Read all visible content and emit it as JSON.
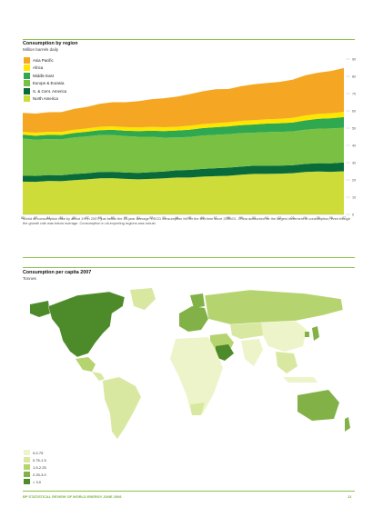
{
  "section1": {
    "title": "Consumption by region",
    "subtitle": "Million barrels daily",
    "caption": "World oil consumption rose by about 1% in 2007, just below the 10-year average. OECD consumption fell for the first time since 2000/01. China accounted for the largest increment to consumption, even though the growth rate was below average. Consumption in oil-exporting regions was robust."
  },
  "chart_data": {
    "type": "area",
    "title": "Consumption by region",
    "subtitle": "Million barrels daily",
    "x": [
      "82",
      "83",
      "84",
      "85",
      "86",
      "87",
      "88",
      "89",
      "90",
      "91",
      "92",
      "93",
      "94",
      "95",
      "96",
      "97",
      "98",
      "99",
      "00",
      "01",
      "02",
      "03",
      "04",
      "05",
      "06",
      "07"
    ],
    "x_tick_labels": [
      "82",
      "83",
      "84",
      "85",
      "86",
      "87",
      "88",
      "89",
      "90",
      "91",
      "92",
      "93",
      "94",
      "95",
      "96",
      "97",
      "98",
      "99",
      "00",
      "01",
      "02",
      "03",
      "04",
      "05",
      "06",
      "07"
    ],
    "y_ticks": [
      0,
      10,
      20,
      30,
      40,
      50,
      60,
      70,
      80,
      90
    ],
    "ylim": [
      0,
      90
    ],
    "y_axis_side": "right",
    "stacked": true,
    "legend_position": "top-left",
    "series": [
      {
        "name": "North America",
        "color": "#cddc39",
        "values": [
          19.0,
          18.9,
          19.4,
          19.3,
          19.9,
          20.3,
          20.9,
          21.0,
          20.6,
          20.3,
          20.6,
          20.9,
          21.4,
          21.4,
          21.9,
          22.2,
          22.4,
          23.0,
          23.5,
          23.5,
          23.6,
          23.9,
          24.6,
          24.9,
          24.7,
          25.0
        ]
      },
      {
        "name": "S. & Cent. America",
        "color": "#0a6b3a",
        "values": [
          3.5,
          3.4,
          3.4,
          3.4,
          3.5,
          3.6,
          3.7,
          3.7,
          3.7,
          3.8,
          3.9,
          4.0,
          4.2,
          4.4,
          4.5,
          4.6,
          4.7,
          4.7,
          4.7,
          4.7,
          4.7,
          4.6,
          4.7,
          4.8,
          4.9,
          5.1
        ]
      },
      {
        "name": "Europe & Eurasia",
        "color": "#7ac143",
        "values": [
          21.5,
          21.0,
          20.9,
          20.8,
          21.2,
          21.3,
          21.4,
          21.3,
          21.1,
          20.9,
          20.5,
          19.6,
          19.0,
          19.1,
          19.3,
          19.3,
          19.4,
          19.4,
          19.2,
          19.5,
          19.5,
          19.6,
          19.8,
          20.0,
          20.2,
          20.1
        ]
      },
      {
        "name": "Middle East",
        "color": "#2fa84f",
        "values": [
          2.2,
          2.3,
          2.4,
          2.5,
          2.6,
          2.7,
          2.8,
          3.0,
          3.1,
          3.3,
          3.5,
          3.8,
          4.0,
          4.2,
          4.3,
          4.4,
          4.5,
          4.6,
          4.7,
          4.9,
          5.0,
          5.1,
          5.4,
          5.7,
          5.9,
          6.2
        ]
      },
      {
        "name": "Africa",
        "color": "#ffe600",
        "values": [
          1.7,
          1.8,
          1.8,
          1.8,
          1.9,
          1.9,
          2.0,
          2.0,
          2.1,
          2.1,
          2.2,
          2.2,
          2.2,
          2.3,
          2.3,
          2.4,
          2.4,
          2.5,
          2.5,
          2.5,
          2.6,
          2.7,
          2.8,
          2.8,
          2.9,
          3.0
        ]
      },
      {
        "name": "Asia Pacific",
        "color": "#f5a623",
        "values": [
          10.9,
          11.0,
          11.3,
          11.5,
          12.0,
          12.5,
          13.3,
          14.0,
          14.4,
          15.2,
          16.0,
          16.8,
          17.4,
          18.3,
          19.0,
          19.6,
          19.2,
          20.1,
          20.8,
          21.0,
          21.4,
          22.1,
          23.3,
          23.9,
          24.5,
          25.4
        ]
      }
    ]
  },
  "section2": {
    "title": "Consumption per capita 2007",
    "subtitle": "Tonnes"
  },
  "map": {
    "legend": [
      {
        "label": "0-0.75",
        "color": "#eef4c9"
      },
      {
        "label": "0.75-1.5",
        "color": "#d8e8a0"
      },
      {
        "label": "1.5-2.25",
        "color": "#b5d36f"
      },
      {
        "label": "2.25-3.0",
        "color": "#82b247"
      },
      {
        "label": "> 3.0",
        "color": "#4d8a2a"
      }
    ]
  },
  "footer": {
    "left": "BP STATISTICAL REVIEW OF WORLD ENERGY JUNE 2008",
    "right": "13"
  }
}
